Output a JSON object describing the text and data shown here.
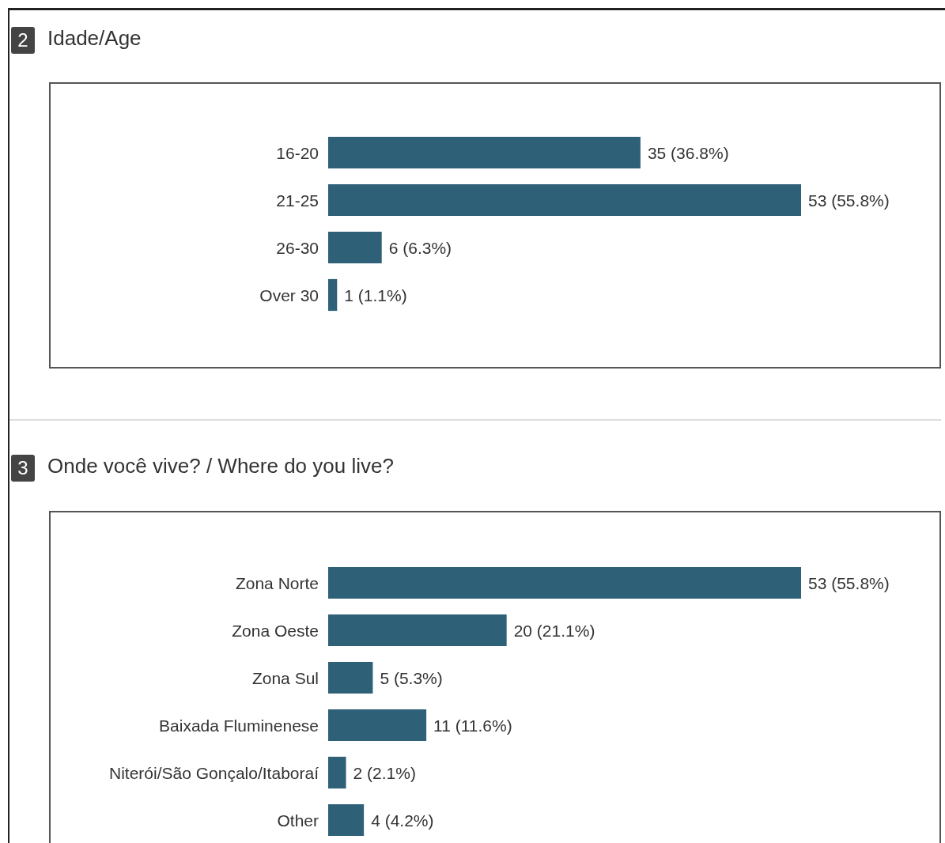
{
  "chart_data": [
    {
      "type": "bar",
      "orientation": "horizontal",
      "title": "Idade/Age",
      "annotations": [
        "2"
      ],
      "categories": [
        "16-20",
        "21-25",
        "26-30",
        "Over 30"
      ],
      "values": [
        35,
        53,
        6,
        1
      ],
      "color": "#2e6078",
      "value_labels": [
        "35 (36.8%)",
        "53 (55.8%)",
        "6 (6.3%)",
        "1 (1.1%)"
      ]
    },
    {
      "type": "bar",
      "orientation": "horizontal",
      "title": "Onde você vive? / Where do you live?",
      "annotations": [
        "3"
      ],
      "categories": [
        "Zona Norte",
        "Zona Oeste",
        "Zona Sul",
        "Baixada Fluminenese",
        "Niterói/São Gonçalo/Itaboraí",
        "Other"
      ],
      "values": [
        53,
        20,
        5,
        11,
        2,
        4
      ],
      "color": "#2e6078",
      "value_labels": [
        "53 (55.8%)",
        "20 (21.1%)",
        "5 (5.3%)",
        "11 (11.6%)",
        "2 (2.1%)",
        "4 (4.2%)"
      ]
    }
  ]
}
